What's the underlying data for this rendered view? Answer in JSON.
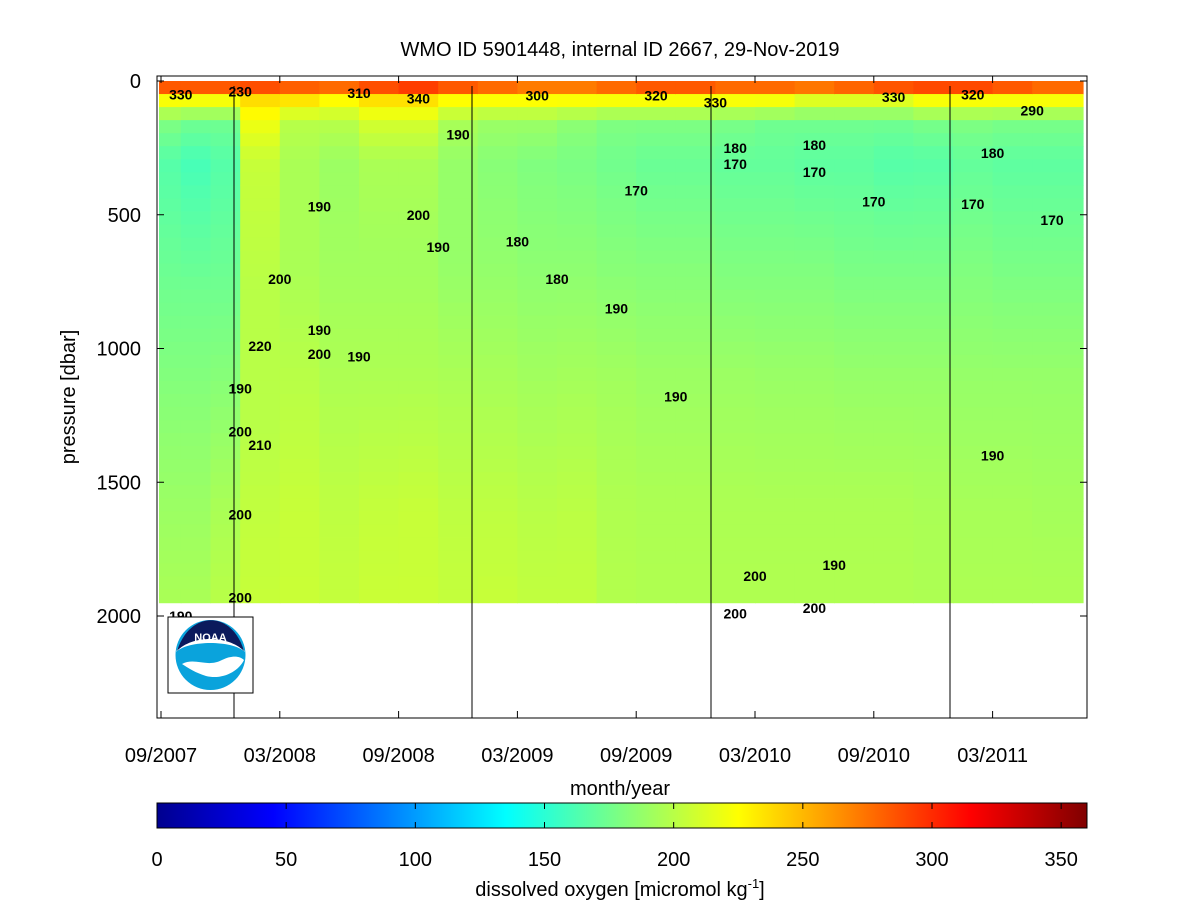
{
  "chart_data": {
    "type": "heatmap",
    "title": "WMO ID 5901448, internal ID 2667, 29-Nov-2019",
    "xlabel": "month/year",
    "ylabel": "pressure [dbar]",
    "x_ticks": [
      "09/2007",
      "03/2008",
      "09/2008",
      "03/2009",
      "09/2009",
      "03/2010",
      "09/2010",
      "03/2011"
    ],
    "y_ticks": [
      0,
      500,
      1000,
      1500,
      2000
    ],
    "ylim": [
      0,
      2400
    ],
    "y_reversed": true,
    "colorbar": {
      "label": "dissolved oxygen [micromol kg",
      "label_superscript": "-1",
      "label_suffix": "]",
      "ticks": [
        0,
        50,
        100,
        150,
        200,
        250,
        300,
        350
      ],
      "range": [
        0,
        360
      ],
      "colormap": "jet"
    },
    "profiles": [
      {
        "date": "2007-09",
        "layers": [
          [
            0,
            320
          ],
          [
            60,
            230
          ],
          [
            150,
            180
          ],
          [
            300,
            165
          ],
          [
            800,
            175
          ],
          [
            1300,
            185
          ],
          [
            1600,
            190
          ],
          [
            1950,
            195
          ]
        ]
      },
      {
        "date": "2007-11",
        "layers": [
          [
            0,
            320
          ],
          [
            60,
            230
          ],
          [
            150,
            175
          ],
          [
            300,
            160
          ],
          [
            800,
            175
          ],
          [
            1300,
            185
          ],
          [
            1600,
            190
          ],
          [
            1950,
            195
          ]
        ]
      },
      {
        "date": "2007-12",
        "layers": [
          [
            0,
            320
          ],
          [
            60,
            230
          ],
          [
            150,
            175
          ],
          [
            300,
            165
          ],
          [
            800,
            175
          ],
          [
            1200,
            185
          ],
          [
            1600,
            195
          ],
          [
            1950,
            200
          ]
        ]
      },
      {
        "date": "2008-02",
        "layers": [
          [
            0,
            320
          ],
          [
            60,
            240
          ],
          [
            150,
            220
          ],
          [
            300,
            205
          ],
          [
            800,
            200
          ],
          [
            1300,
            200
          ],
          [
            1600,
            203
          ],
          [
            1950,
            205
          ]
        ]
      },
      {
        "date": "2008-04",
        "layers": [
          [
            0,
            310
          ],
          [
            60,
            240
          ],
          [
            150,
            200
          ],
          [
            300,
            195
          ],
          [
            700,
            195
          ],
          [
            1100,
            200
          ],
          [
            1600,
            205
          ],
          [
            1950,
            206
          ]
        ]
      },
      {
        "date": "2008-06",
        "layers": [
          [
            0,
            310
          ],
          [
            60,
            230
          ],
          [
            150,
            200
          ],
          [
            300,
            190
          ],
          [
            700,
            192
          ],
          [
            1100,
            196
          ],
          [
            1600,
            202
          ],
          [
            1950,
            204
          ]
        ]
      },
      {
        "date": "2008-08",
        "layers": [
          [
            0,
            320
          ],
          [
            60,
            240
          ],
          [
            150,
            210
          ],
          [
            300,
            195
          ],
          [
            700,
            192
          ],
          [
            1100,
            196
          ],
          [
            1600,
            204
          ],
          [
            1950,
            206
          ]
        ]
      },
      {
        "date": "2008-10",
        "layers": [
          [
            0,
            330
          ],
          [
            60,
            240
          ],
          [
            150,
            210
          ],
          [
            300,
            195
          ],
          [
            700,
            192
          ],
          [
            1100,
            196
          ],
          [
            1600,
            205
          ],
          [
            1950,
            206
          ]
        ]
      },
      {
        "date": "2008-12",
        "layers": [
          [
            0,
            320
          ],
          [
            60,
            230
          ],
          [
            150,
            195
          ],
          [
            300,
            188
          ],
          [
            700,
            188
          ],
          [
            1100,
            195
          ],
          [
            1600,
            202
          ],
          [
            1950,
            204
          ]
        ]
      },
      {
        "date": "2009-02",
        "layers": [
          [
            0,
            310
          ],
          [
            60,
            230
          ],
          [
            150,
            190
          ],
          [
            300,
            183
          ],
          [
            700,
            187
          ],
          [
            1100,
            194
          ],
          [
            1600,
            202
          ],
          [
            1950,
            205
          ]
        ]
      },
      {
        "date": "2009-04",
        "layers": [
          [
            0,
            300
          ],
          [
            60,
            230
          ],
          [
            150,
            190
          ],
          [
            300,
            180
          ],
          [
            700,
            185
          ],
          [
            1100,
            192
          ],
          [
            1600,
            200
          ],
          [
            1950,
            203
          ]
        ]
      },
      {
        "date": "2009-06",
        "layers": [
          [
            0,
            300
          ],
          [
            60,
            230
          ],
          [
            150,
            185
          ],
          [
            300,
            178
          ],
          [
            700,
            185
          ],
          [
            1100,
            193
          ],
          [
            1600,
            201
          ],
          [
            1950,
            203
          ]
        ]
      },
      {
        "date": "2009-08",
        "layers": [
          [
            0,
            310
          ],
          [
            60,
            230
          ],
          [
            150,
            180
          ],
          [
            300,
            175
          ],
          [
            700,
            183
          ],
          [
            1100,
            192
          ],
          [
            1600,
            197
          ],
          [
            1950,
            198
          ]
        ]
      },
      {
        "date": "2009-10",
        "layers": [
          [
            0,
            320
          ],
          [
            60,
            230
          ],
          [
            150,
            180
          ],
          [
            300,
            172
          ],
          [
            700,
            182
          ],
          [
            1100,
            190
          ],
          [
            1600,
            196
          ],
          [
            1950,
            197
          ]
        ]
      },
      {
        "date": "2009-12",
        "layers": [
          [
            0,
            320
          ],
          [
            60,
            230
          ],
          [
            150,
            180
          ],
          [
            300,
            172
          ],
          [
            700,
            182
          ],
          [
            1100,
            190
          ],
          [
            1600,
            196
          ],
          [
            1950,
            197
          ]
        ]
      },
      {
        "date": "2010-02",
        "layers": [
          [
            0,
            310
          ],
          [
            60,
            230
          ],
          [
            150,
            178
          ],
          [
            300,
            170
          ],
          [
            700,
            180
          ],
          [
            1100,
            190
          ],
          [
            1600,
            196
          ],
          [
            1950,
            197
          ]
        ]
      },
      {
        "date": "2010-04",
        "layers": [
          [
            0,
            310
          ],
          [
            60,
            230
          ],
          [
            150,
            175
          ],
          [
            300,
            170
          ],
          [
            700,
            180
          ],
          [
            1100,
            189
          ],
          [
            1600,
            196
          ],
          [
            1950,
            197
          ]
        ]
      },
      {
        "date": "2010-06",
        "layers": [
          [
            0,
            310
          ],
          [
            60,
            220
          ],
          [
            150,
            175
          ],
          [
            300,
            168
          ],
          [
            700,
            180
          ],
          [
            1100,
            189
          ],
          [
            1600,
            196
          ],
          [
            1950,
            197
          ]
        ]
      },
      {
        "date": "2010-08",
        "layers": [
          [
            0,
            320
          ],
          [
            60,
            220
          ],
          [
            150,
            175
          ],
          [
            300,
            168
          ],
          [
            700,
            178
          ],
          [
            1100,
            188
          ],
          [
            1600,
            196
          ],
          [
            1950,
            197
          ]
        ]
      },
      {
        "date": "2010-10",
        "layers": [
          [
            0,
            330
          ],
          [
            60,
            220
          ],
          [
            150,
            175
          ],
          [
            300,
            165
          ],
          [
            700,
            178
          ],
          [
            1100,
            188
          ],
          [
            1600,
            196
          ],
          [
            1950,
            197
          ]
        ]
      },
      {
        "date": "2010-12",
        "layers": [
          [
            0,
            330
          ],
          [
            60,
            230
          ],
          [
            150,
            178
          ],
          [
            300,
            166
          ],
          [
            700,
            178
          ],
          [
            1100,
            188
          ],
          [
            1600,
            195
          ],
          [
            1950,
            196
          ]
        ]
      },
      {
        "date": "2011-02",
        "layers": [
          [
            0,
            330
          ],
          [
            60,
            230
          ],
          [
            150,
            180
          ],
          [
            300,
            170
          ],
          [
            700,
            180
          ],
          [
            1100,
            188
          ],
          [
            1600,
            194
          ],
          [
            1950,
            196
          ]
        ]
      },
      {
        "date": "2011-04",
        "layers": [
          [
            0,
            320
          ],
          [
            60,
            230
          ],
          [
            150,
            178
          ],
          [
            300,
            168
          ],
          [
            700,
            178
          ],
          [
            1100,
            188
          ],
          [
            1600,
            194
          ],
          [
            1950,
            196
          ]
        ]
      },
      {
        "date": "2011-06",
        "layers": [
          [
            0,
            310
          ],
          [
            60,
            230
          ],
          [
            150,
            178
          ],
          [
            300,
            168
          ],
          [
            700,
            178
          ],
          [
            1100,
            188
          ],
          [
            1600,
            193
          ],
          [
            1950,
            196
          ]
        ]
      }
    ],
    "contour_labels": [
      {
        "text": "330",
        "x": "2007-10",
        "y": 50
      },
      {
        "text": "230",
        "x": "2008-01",
        "y": 40
      },
      {
        "text": "310",
        "x": "2008-07",
        "y": 45
      },
      {
        "text": "340",
        "x": "2008-10",
        "y": 65
      },
      {
        "text": "300",
        "x": "2009-04",
        "y": 55
      },
      {
        "text": "320",
        "x": "2009-10",
        "y": 55
      },
      {
        "text": "330",
        "x": "2010-01",
        "y": 80
      },
      {
        "text": "330",
        "x": "2010-10",
        "y": 60
      },
      {
        "text": "320",
        "x": "2011-02",
        "y": 50
      },
      {
        "text": "290",
        "x": "2011-05",
        "y": 110
      },
      {
        "text": "190",
        "x": "2008-12",
        "y": 200
      },
      {
        "text": "180",
        "x": "2010-02",
        "y": 250
      },
      {
        "text": "170",
        "x": "2010-02",
        "y": 310
      },
      {
        "text": "170",
        "x": "2010-06",
        "y": 340
      },
      {
        "text": "180",
        "x": "2010-06",
        "y": 240
      },
      {
        "text": "170",
        "x": "2009-09",
        "y": 410
      },
      {
        "text": "170",
        "x": "2010-09",
        "y": 450
      },
      {
        "text": "170",
        "x": "2011-02",
        "y": 460
      },
      {
        "text": "170",
        "x": "2011-06",
        "y": 520
      },
      {
        "text": "180",
        "x": "2011-03",
        "y": 270
      },
      {
        "text": "190",
        "x": "2008-05",
        "y": 470
      },
      {
        "text": "200",
        "x": "2008-10",
        "y": 500
      },
      {
        "text": "190",
        "x": "2008-11",
        "y": 620
      },
      {
        "text": "180",
        "x": "2009-03",
        "y": 600
      },
      {
        "text": "180",
        "x": "2009-05",
        "y": 740
      },
      {
        "text": "190",
        "x": "2009-08",
        "y": 850
      },
      {
        "text": "200",
        "x": "2008-03",
        "y": 740
      },
      {
        "text": "190",
        "x": "2008-05",
        "y": 930
      },
      {
        "text": "200",
        "x": "2008-05",
        "y": 1020
      },
      {
        "text": "190",
        "x": "2008-07",
        "y": 1030
      },
      {
        "text": "220",
        "x": "2008-02",
        "y": 990
      },
      {
        "text": "190",
        "x": "2008-01",
        "y": 1150
      },
      {
        "text": "200",
        "x": "2008-01",
        "y": 1310
      },
      {
        "text": "210",
        "x": "2008-02",
        "y": 1360
      },
      {
        "text": "190",
        "x": "2009-11",
        "y": 1180
      },
      {
        "text": "190",
        "x": "2011-03",
        "y": 1400
      },
      {
        "text": "200",
        "x": "2008-01",
        "y": 1620
      },
      {
        "text": "200",
        "x": "2008-01",
        "y": 1930
      },
      {
        "text": "190",
        "x": "2007-10",
        "y": 2000
      },
      {
        "text": "190",
        "x": "2010-07",
        "y": 1810
      },
      {
        "text": "200",
        "x": "2010-03",
        "y": 1850
      },
      {
        "text": "200",
        "x": "2010-02",
        "y": 1990
      },
      {
        "text": "200",
        "x": "2010-06",
        "y": 1970
      }
    ],
    "logo": {
      "text": "NOAA"
    }
  }
}
